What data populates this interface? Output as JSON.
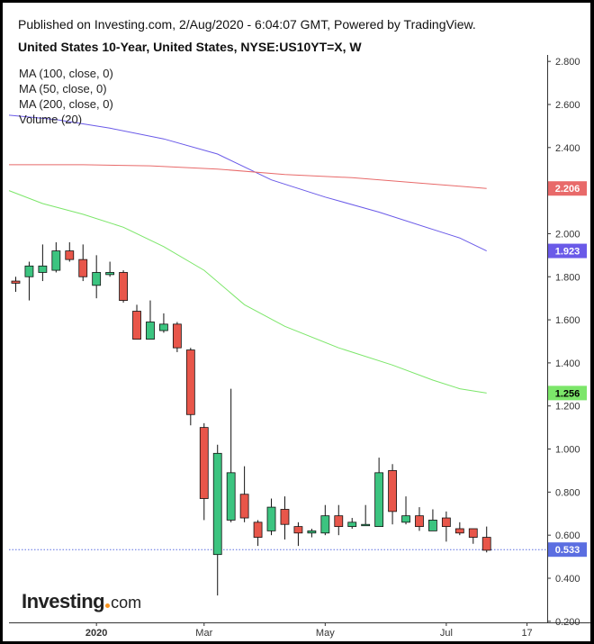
{
  "header": {
    "published": "Published on Investing.com, 2/Aug/2020 - 6:04:07 GMT, Powered by TradingView.",
    "title": "United States 10-Year, United States, NYSE:US10YT=X, W"
  },
  "legend": {
    "ma100": "MA (100, close, 0)",
    "ma50": "MA (50, close, 0)",
    "ma200": "MA (200, close, 0)",
    "volume": "Volume (20)"
  },
  "logo": {
    "main": "Investing",
    "suffix": "com"
  },
  "colors": {
    "up": "#3cc480",
    "down": "#e8564a",
    "ma100": "#6a5ae8",
    "ma50": "#7ce66a",
    "ma200": "#e86a6a",
    "last_price": "#5b6ee1"
  },
  "chart_data": {
    "type": "candlestick",
    "y_axis_ticks": [
      "2.800",
      "2.600",
      "2.400",
      "2.200",
      "2.000",
      "1.800",
      "1.600",
      "1.400",
      "1.200",
      "1.000",
      "0.800",
      "0.600",
      "0.400",
      "0.200"
    ],
    "ylim": [
      0.195,
      2.83
    ],
    "x_axis_ticks": [
      {
        "label": "2020",
        "week": 6
      },
      {
        "label": "Mar",
        "week": 14
      },
      {
        "label": "May",
        "week": 23
      },
      {
        "label": "Jul",
        "week": 32
      },
      {
        "label": "17",
        "week": 38
      }
    ],
    "xlim": [
      -0.5,
      39.5
    ],
    "candles": [
      {
        "week": 0,
        "open": 1.78,
        "high": 1.8,
        "low": 1.73,
        "close": 1.77
      },
      {
        "week": 1,
        "open": 1.8,
        "high": 1.87,
        "low": 1.69,
        "close": 1.85
      },
      {
        "week": 2,
        "open": 1.82,
        "high": 1.95,
        "low": 1.78,
        "close": 1.85
      },
      {
        "week": 3,
        "open": 1.83,
        "high": 1.96,
        "low": 1.82,
        "close": 1.92
      },
      {
        "week": 4,
        "open": 1.92,
        "high": 1.96,
        "low": 1.87,
        "close": 1.88
      },
      {
        "week": 5,
        "open": 1.88,
        "high": 1.95,
        "low": 1.78,
        "close": 1.8
      },
      {
        "week": 6,
        "open": 1.76,
        "high": 1.9,
        "low": 1.7,
        "close": 1.82
      },
      {
        "week": 7,
        "open": 1.81,
        "high": 1.87,
        "low": 1.8,
        "close": 1.82
      },
      {
        "week": 8,
        "open": 1.82,
        "high": 1.83,
        "low": 1.68,
        "close": 1.69
      },
      {
        "week": 9,
        "open": 1.64,
        "high": 1.67,
        "low": 1.51,
        "close": 1.51
      },
      {
        "week": 10,
        "open": 1.51,
        "high": 1.69,
        "low": 1.51,
        "close": 1.59
      },
      {
        "week": 11,
        "open": 1.55,
        "high": 1.63,
        "low": 1.54,
        "close": 1.58
      },
      {
        "week": 12,
        "open": 1.58,
        "high": 1.59,
        "low": 1.45,
        "close": 1.47
      },
      {
        "week": 13,
        "open": 1.46,
        "high": 1.47,
        "low": 1.11,
        "close": 1.16
      },
      {
        "week": 14,
        "open": 1.1,
        "high": 1.12,
        "low": 0.67,
        "close": 0.77
      },
      {
        "week": 15,
        "open": 0.51,
        "high": 1.02,
        "low": 0.32,
        "close": 0.98
      },
      {
        "week": 16,
        "open": 0.67,
        "high": 1.28,
        "low": 0.66,
        "close": 0.89
      },
      {
        "week": 17,
        "open": 0.79,
        "high": 0.92,
        "low": 0.66,
        "close": 0.68
      },
      {
        "week": 18,
        "open": 0.66,
        "high": 0.67,
        "low": 0.55,
        "close": 0.59
      },
      {
        "week": 19,
        "open": 0.62,
        "high": 0.77,
        "low": 0.6,
        "close": 0.73
      },
      {
        "week": 20,
        "open": 0.72,
        "high": 0.78,
        "low": 0.58,
        "close": 0.65
      },
      {
        "week": 21,
        "open": 0.64,
        "high": 0.66,
        "low": 0.55,
        "close": 0.61
      },
      {
        "week": 22,
        "open": 0.61,
        "high": 0.63,
        "low": 0.59,
        "close": 0.62
      },
      {
        "week": 23,
        "open": 0.61,
        "high": 0.74,
        "low": 0.6,
        "close": 0.69
      },
      {
        "week": 24,
        "open": 0.69,
        "high": 0.74,
        "low": 0.6,
        "close": 0.64
      },
      {
        "week": 25,
        "open": 0.64,
        "high": 0.68,
        "low": 0.63,
        "close": 0.66
      },
      {
        "week": 26,
        "open": 0.65,
        "high": 0.74,
        "low": 0.65,
        "close": 0.65
      },
      {
        "week": 27,
        "open": 0.64,
        "high": 0.96,
        "low": 0.64,
        "close": 0.89
      },
      {
        "week": 28,
        "open": 0.9,
        "high": 0.93,
        "low": 0.65,
        "close": 0.71
      },
      {
        "week": 29,
        "open": 0.66,
        "high": 0.78,
        "low": 0.65,
        "close": 0.69
      },
      {
        "week": 30,
        "open": 0.69,
        "high": 0.73,
        "low": 0.62,
        "close": 0.64
      },
      {
        "week": 31,
        "open": 0.62,
        "high": 0.72,
        "low": 0.62,
        "close": 0.67
      },
      {
        "week": 32,
        "open": 0.68,
        "high": 0.71,
        "low": 0.57,
        "close": 0.64
      },
      {
        "week": 33,
        "open": 0.63,
        "high": 0.66,
        "low": 0.6,
        "close": 0.61
      },
      {
        "week": 34,
        "open": 0.63,
        "high": 0.63,
        "low": 0.56,
        "close": 0.59
      },
      {
        "week": 35,
        "open": 0.59,
        "high": 0.64,
        "low": 0.52,
        "close": 0.53
      }
    ],
    "moving_averages": [
      {
        "name": "MA (100, close, 0)",
        "color_key": "ma100",
        "last_label": "1.923",
        "points": [
          [
            -0.5,
            2.55
          ],
          [
            3,
            2.53
          ],
          [
            7,
            2.49
          ],
          [
            11,
            2.44
          ],
          [
            15,
            2.37
          ],
          [
            19,
            2.25
          ],
          [
            23,
            2.17
          ],
          [
            27,
            2.1
          ],
          [
            31,
            2.02
          ],
          [
            33,
            1.98
          ],
          [
            35,
            1.92
          ]
        ]
      },
      {
        "name": "MA (50, close, 0)",
        "color_key": "ma50",
        "last_label": "1.256",
        "points": [
          [
            -0.5,
            2.2
          ],
          [
            2,
            2.14
          ],
          [
            5,
            2.09
          ],
          [
            8,
            2.03
          ],
          [
            11,
            1.94
          ],
          [
            14,
            1.83
          ],
          [
            17,
            1.67
          ],
          [
            20,
            1.57
          ],
          [
            24,
            1.47
          ],
          [
            28,
            1.39
          ],
          [
            31,
            1.32
          ],
          [
            33,
            1.28
          ],
          [
            35,
            1.26
          ]
        ]
      },
      {
        "name": "MA (200, close, 0)",
        "color_key": "ma200",
        "last_label": "2.206",
        "points": [
          [
            -0.5,
            2.32
          ],
          [
            5,
            2.32
          ],
          [
            10,
            2.315
          ],
          [
            15,
            2.3
          ],
          [
            20,
            2.275
          ],
          [
            25,
            2.26
          ],
          [
            30,
            2.235
          ],
          [
            33,
            2.22
          ],
          [
            35,
            2.21
          ]
        ]
      }
    ],
    "last_price": {
      "value": 0.533,
      "label": "0.533"
    }
  }
}
